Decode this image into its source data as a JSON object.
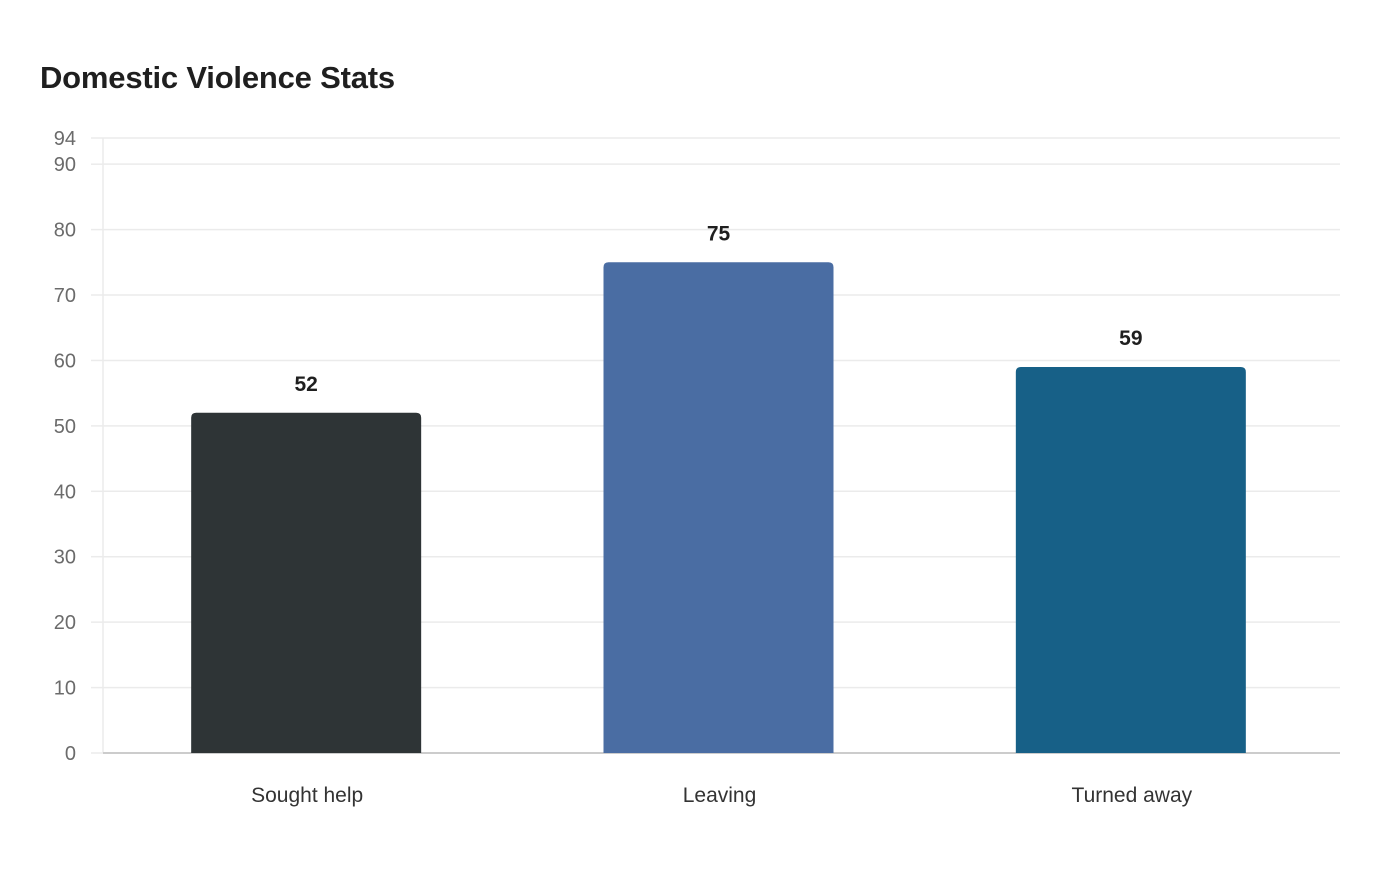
{
  "chart_data": {
    "type": "bar",
    "title": "Domestic Violence Stats",
    "categories": [
      "Sought help",
      "Leaving",
      "Turned away"
    ],
    "values": [
      52,
      75,
      59
    ],
    "colors": [
      "#2e3436",
      "#4a6da3",
      "#176087"
    ],
    "xlabel": "",
    "ylabel": "",
    "ylim": [
      0,
      94
    ],
    "yticks": [
      0,
      10,
      20,
      30,
      40,
      50,
      60,
      70,
      80,
      90,
      94
    ],
    "grid": true,
    "legend": "none",
    "data_labels": true
  },
  "style": {
    "grid_color": "#ebebeb",
    "axis_color": "#cccccc"
  }
}
